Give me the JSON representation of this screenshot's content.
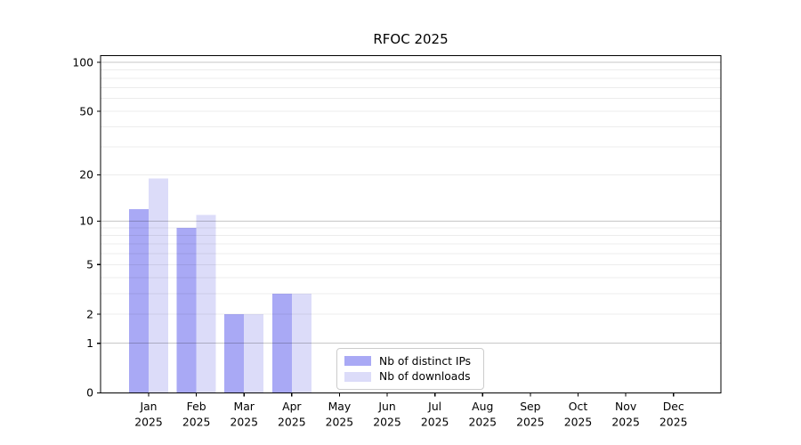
{
  "figure": {
    "title": "RFOC 2025"
  },
  "colors": {
    "background": "#ffffff",
    "ips_bar": "#a9a9f5",
    "downloads_bar": "#dcdcf9",
    "grid_major": "#c3c3c3",
    "grid_minor": "#ededed",
    "axis": "#000000",
    "legend_border": "#cccccc"
  },
  "chart_data": {
    "type": "bar",
    "title": "RFOC 2025",
    "categories": [
      "Jan",
      "Feb",
      "Mar",
      "Apr",
      "May",
      "Jun",
      "Jul",
      "Aug",
      "Sep",
      "Oct",
      "Nov",
      "Dec"
    ],
    "category_year": "2025",
    "series": [
      {
        "name": "Nb of distinct IPs",
        "color": "#a9a9f5",
        "values": [
          12,
          9,
          2,
          3,
          null,
          null,
          null,
          null,
          null,
          null,
          null,
          null
        ]
      },
      {
        "name": "Nb of downloads",
        "color": "#dcdcf9",
        "values": [
          19,
          11,
          2,
          3,
          null,
          null,
          null,
          null,
          null,
          null,
          null,
          null
        ]
      }
    ],
    "xlabel": "",
    "ylabel": "",
    "y_scale": "symlog",
    "ylim": [
      0,
      110
    ],
    "y_ticks": [
      0,
      1,
      2,
      5,
      10,
      20,
      50,
      100
    ],
    "y_major_grid": [
      1,
      10,
      100
    ],
    "y_minor_grid": [
      2,
      3,
      4,
      5,
      6,
      7,
      8,
      9,
      20,
      30,
      40,
      50,
      60,
      70,
      80,
      90
    ],
    "grid": true,
    "legend_position": "lower center"
  }
}
